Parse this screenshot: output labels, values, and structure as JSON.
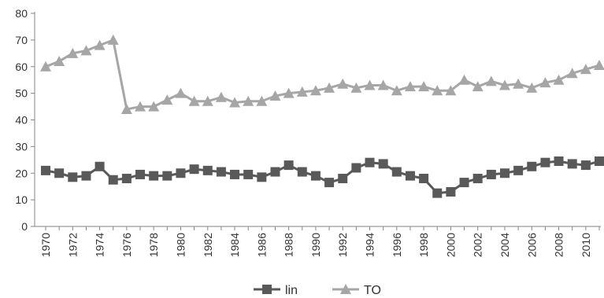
{
  "chart_data": {
    "type": "line",
    "title": "",
    "xlabel": "",
    "ylabel": "",
    "x": [
      1970,
      1971,
      1972,
      1973,
      1974,
      1975,
      1976,
      1977,
      1978,
      1979,
      1980,
      1981,
      1982,
      1983,
      1984,
      1985,
      1986,
      1987,
      1988,
      1989,
      1990,
      1991,
      1992,
      1993,
      1994,
      1995,
      1996,
      1997,
      1998,
      1999,
      2000,
      2001,
      2002,
      2003,
      2004,
      2005,
      2006,
      2007,
      2008,
      2009,
      2010,
      2011
    ],
    "x_tick_labels": [
      "1970",
      "1972",
      "1974",
      "1976",
      "1978",
      "1980",
      "1982",
      "1984",
      "1986",
      "1988",
      "1990",
      "1992",
      "1994",
      "1996",
      "1998",
      "2000",
      "2002",
      "2004",
      "2006",
      "2008",
      "2010"
    ],
    "y_tick_labels": [
      "0",
      "10",
      "20",
      "30",
      "40",
      "50",
      "60",
      "70",
      "80"
    ],
    "ylim": [
      0,
      80
    ],
    "grid": false,
    "legend_position": "bottom",
    "series": [
      {
        "name": "lin",
        "marker": "square",
        "color": "#595959",
        "values": [
          21,
          20,
          18.5,
          19,
          22.5,
          17.5,
          18,
          19.5,
          19,
          19,
          20,
          21.5,
          21,
          20.5,
          19.5,
          19.5,
          18.5,
          20.5,
          23,
          20.5,
          19,
          16.5,
          18,
          22,
          24,
          23.5,
          20.5,
          19,
          18,
          12.5,
          13,
          16.5,
          18,
          19.5,
          20,
          21,
          22.5,
          24,
          24.5,
          23.5,
          23,
          24.5
        ]
      },
      {
        "name": "TO",
        "marker": "triangle",
        "color": "#a6a6a6",
        "values": [
          60,
          62,
          65,
          66,
          68,
          70,
          44,
          45,
          45,
          47.5,
          50,
          47,
          47,
          48.5,
          46.5,
          47,
          47,
          49,
          50,
          50.5,
          51,
          52,
          53.5,
          52,
          53,
          53,
          51,
          52.5,
          52.5,
          51,
          51,
          55,
          52.5,
          54.5,
          53,
          53.5,
          52,
          54,
          55,
          57.5,
          59,
          60.5
        ]
      }
    ]
  }
}
